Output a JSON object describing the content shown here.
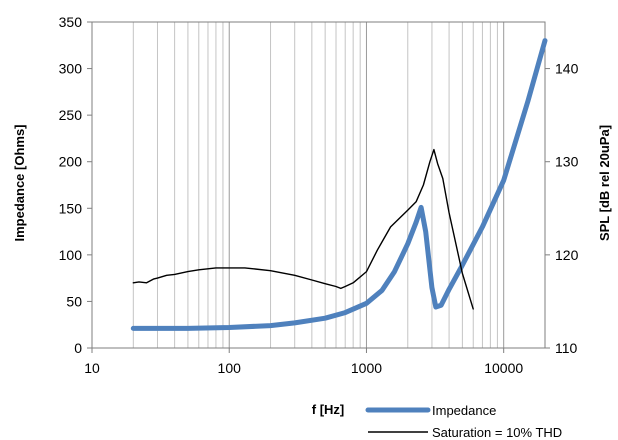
{
  "chart_data": {
    "type": "line",
    "title": "",
    "xlabel": "f [Hz]",
    "ylabel": "Impedance [Ohms]",
    "y2label": "SPL [dB rel 20uPa]",
    "x_scale": "log",
    "xlim": [
      10,
      20000
    ],
    "ylim": [
      0,
      350
    ],
    "y2lim": [
      110,
      145
    ],
    "x_ticks": [
      10,
      100,
      1000,
      10000
    ],
    "x_tick_labels": [
      "10",
      "100",
      "1000",
      "10000"
    ],
    "y_ticks": [
      0,
      50,
      100,
      150,
      200,
      250,
      300,
      350
    ],
    "y_tick_labels": [
      "0",
      "50",
      "100",
      "150",
      "200",
      "250",
      "300",
      "350"
    ],
    "y2_ticks": [
      110,
      120,
      130,
      140
    ],
    "y2_tick_labels": [
      "110",
      "120",
      "130",
      "140"
    ],
    "grid": "vertical minor log lines",
    "legend_position": "bottom-right",
    "series": [
      {
        "name": "Impedance",
        "axis": "left",
        "color": "#4f81bd",
        "x": [
          20,
          50,
          100,
          200,
          300,
          500,
          700,
          1000,
          1300,
          1600,
          2000,
          2300,
          2500,
          2700,
          3000,
          3200,
          3500,
          4000,
          5000,
          7000,
          10000,
          15000,
          20000
        ],
        "y": [
          21,
          21,
          22,
          24,
          27,
          32,
          38,
          48,
          62,
          82,
          112,
          135,
          151,
          125,
          65,
          44,
          46,
          63,
          89,
          130,
          180,
          265,
          330
        ]
      },
      {
        "name": "Saturation = 10% THD",
        "axis": "right",
        "color": "#000000",
        "x": [
          20,
          22,
          25,
          28,
          30,
          35,
          40,
          50,
          60,
          80,
          100,
          130,
          150,
          200,
          300,
          400,
          500,
          600,
          650,
          700,
          800,
          1000,
          1200,
          1500,
          2000,
          2300,
          2600,
          2900,
          3100,
          3300,
          3600,
          4000,
          5000,
          6000
        ],
        "y": [
          117.0,
          117.1,
          117.0,
          117.4,
          117.5,
          117.8,
          117.9,
          118.2,
          118.4,
          118.6,
          118.6,
          118.6,
          118.5,
          118.3,
          117.8,
          117.3,
          116.9,
          116.6,
          116.4,
          116.6,
          117.0,
          118.2,
          120.5,
          123.0,
          124.8,
          125.7,
          127.5,
          130.0,
          131.3,
          129.8,
          128.2,
          124.5,
          118.0,
          114.2
        ]
      }
    ]
  }
}
